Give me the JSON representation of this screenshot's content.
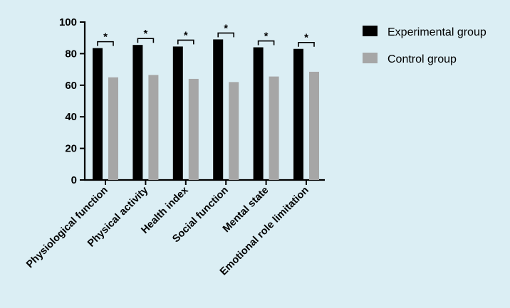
{
  "chart_data": {
    "type": "bar",
    "categories": [
      "Physiological function",
      "Physical activity",
      "Health index",
      "Social function",
      "Mental state",
      "Emotional role limitation"
    ],
    "series": [
      {
        "name": "Experimental group",
        "values": [
          83.5,
          85.5,
          84.5,
          89,
          84,
          83
        ],
        "color": "#000000"
      },
      {
        "name": "Control group",
        "values": [
          65,
          66.5,
          64,
          62,
          65.5,
          68.5
        ],
        "color": "#a6a6a6"
      }
    ],
    "significance": [
      "*",
      "*",
      "*",
      "*",
      "*",
      "*"
    ],
    "yticks": [
      0,
      20,
      40,
      60,
      80,
      100
    ],
    "ylim": [
      0,
      100
    ],
    "title": "",
    "xlabel": "",
    "ylabel": "",
    "grid": false,
    "legend_position": "top-right"
  }
}
